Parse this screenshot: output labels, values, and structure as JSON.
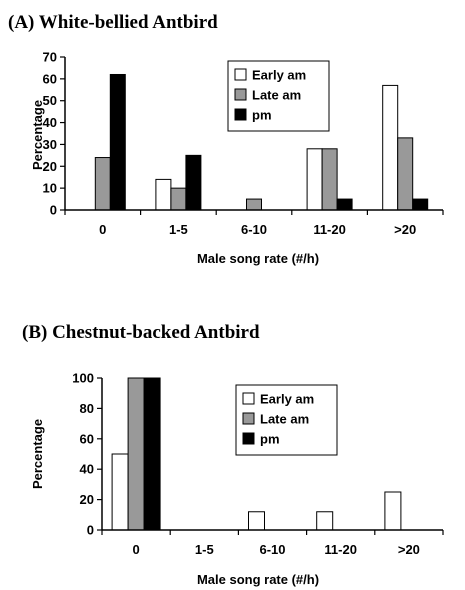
{
  "chart_data": [
    {
      "type": "bar",
      "title": "(A) White-bellied Antbird",
      "xlabel": "Male song rate (#/h)",
      "ylabel": "Percentage",
      "ylim": [
        0,
        70
      ],
      "yticks": [
        0,
        10,
        20,
        30,
        40,
        50,
        60,
        70
      ],
      "grid": false,
      "legend": "top-right",
      "categories": [
        "0",
        "1-5",
        "6-10",
        "11-20",
        ">20"
      ],
      "series": [
        {
          "name": "Early am",
          "color": "#ffffff",
          "values": [
            0,
            14,
            0,
            28,
            57
          ]
        },
        {
          "name": "Late am",
          "color": "#999999",
          "values": [
            24,
            10,
            5,
            28,
            33
          ]
        },
        {
          "name": "pm",
          "color": "#000000",
          "values": [
            62,
            25,
            0,
            5,
            5
          ]
        }
      ]
    },
    {
      "type": "bar",
      "title": "(B) Chestnut-backed Antbird",
      "xlabel": "Male song rate (#/h)",
      "ylabel": "Percentage",
      "ylim": [
        0,
        100
      ],
      "yticks": [
        0,
        20,
        40,
        60,
        80,
        100
      ],
      "grid": false,
      "legend": "top-right",
      "categories": [
        "0",
        "1-5",
        "6-10",
        "11-20",
        ">20"
      ],
      "series": [
        {
          "name": "Early am",
          "color": "#ffffff",
          "values": [
            50,
            0,
            12,
            12,
            25
          ]
        },
        {
          "name": "Late am",
          "color": "#999999",
          "values": [
            100,
            0,
            0,
            0,
            0
          ]
        },
        {
          "name": "pm",
          "color": "#000000",
          "values": [
            100,
            0,
            0,
            0,
            0
          ]
        }
      ]
    }
  ]
}
